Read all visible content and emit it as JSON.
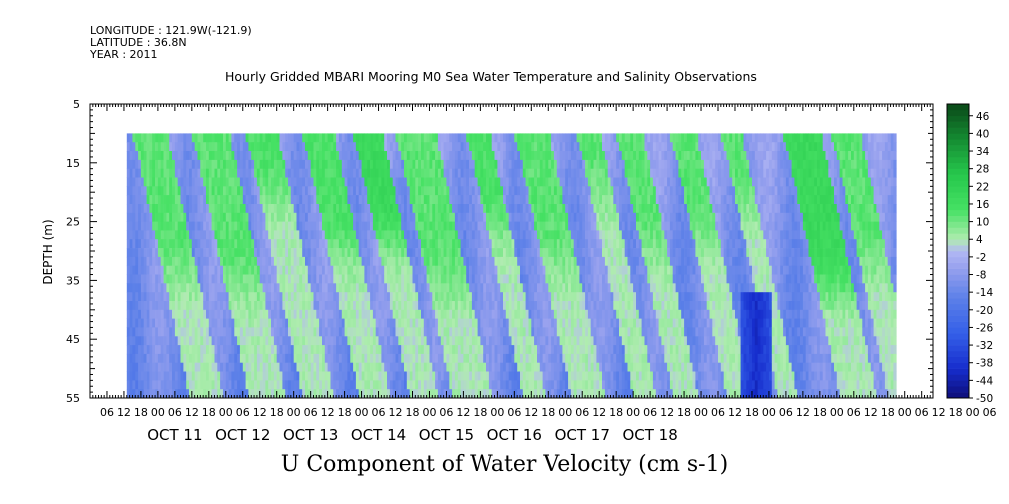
{
  "header": {
    "longitude": "LONGITUDE : 121.9W(-121.9)",
    "latitude": "LATITUDE : 36.8N",
    "year": "YEAR : 2011"
  },
  "chart_data": {
    "type": "heatmap",
    "title": "Hourly Gridded MBARI Mooring M0 Sea Water Temperature and Salinity Observations",
    "caption": "U Component of Water Velocity (cm s-1)",
    "ylabel": "DEPTH (m)",
    "variable": "U Component of Water Velocity",
    "units": "cm s-1",
    "y_range": [
      5,
      55
    ],
    "y_ticks": [
      "5",
      "15",
      "25",
      "35",
      "45",
      "55"
    ],
    "data_depth_range": [
      10,
      55
    ],
    "x_range_hours": [
      0,
      298
    ],
    "data_start_hour": 13,
    "data_end_hour": 285,
    "x_hour_ticks": [
      "06",
      "12",
      "18",
      "00",
      "06",
      "12",
      "18",
      "00",
      "06",
      "12",
      "18",
      "00",
      "06",
      "12",
      "18",
      "00",
      "06",
      "12",
      "18",
      "00",
      "06",
      "12",
      "18",
      "00",
      "06",
      "12",
      "18",
      "00",
      "06",
      "12",
      "18",
      "00",
      "06",
      "12",
      "18",
      "00",
      "06",
      "12",
      "18",
      "00",
      "06",
      "12",
      "18",
      "00",
      "06",
      "12",
      "18",
      "00",
      "06",
      "12",
      "18",
      "00",
      "06"
    ],
    "days": [
      "OCT 11",
      "OCT 12",
      "OCT 13",
      "OCT 14",
      "OCT 15",
      "OCT 16",
      "OCT 17",
      "OCT 18"
    ],
    "colorbar": {
      "min": -50,
      "max": 50,
      "step": 2,
      "labels": [
        "46",
        "40",
        "34",
        "28",
        "22",
        "16",
        "10",
        "4",
        "-2",
        "-8",
        "-14",
        "-20",
        "-26",
        "-32",
        "-38",
        "-44",
        "-50"
      ]
    },
    "flow_pulses": [
      {
        "start": 15,
        "end": 27,
        "top": 8,
        "bottom": 28
      },
      {
        "start": 36,
        "end": 49,
        "top": 8,
        "bottom": 30
      },
      {
        "start": 55,
        "end": 66,
        "top": 10,
        "bottom": 14
      },
      {
        "start": 75,
        "end": 86,
        "top": 10,
        "bottom": 24
      },
      {
        "start": 93,
        "end": 103,
        "top": 14,
        "bottom": 22
      },
      {
        "start": 108,
        "end": 122,
        "top": 8,
        "bottom": 30
      },
      {
        "start": 133,
        "end": 141,
        "top": 10,
        "bottom": 20
      },
      {
        "start": 150,
        "end": 162,
        "top": 8,
        "bottom": 26
      },
      {
        "start": 172,
        "end": 180,
        "top": 8,
        "bottom": 14
      },
      {
        "start": 186,
        "end": 195,
        "top": 8,
        "bottom": 24
      },
      {
        "start": 205,
        "end": 214,
        "top": 8,
        "bottom": 22
      },
      {
        "start": 223,
        "end": 230,
        "top": 8,
        "bottom": 16
      },
      {
        "start": 245,
        "end": 258,
        "top": 14,
        "bottom": 30
      },
      {
        "start": 262,
        "end": 272,
        "top": 8,
        "bottom": 26
      }
    ],
    "strong_onshore_core": {
      "start": 230,
      "end": 240,
      "top": 36,
      "bottom": 55,
      "value": -40
    }
  }
}
